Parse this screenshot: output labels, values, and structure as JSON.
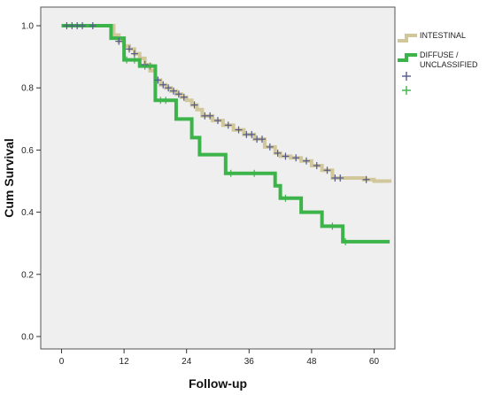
{
  "chart_data": {
    "type": "line",
    "subtype": "kaplan-meier-step",
    "title": "",
    "xlabel": "Follow-up",
    "ylabel": "Cum Survival",
    "xlim": [
      -4,
      64
    ],
    "ylim": [
      -0.04,
      1.06
    ],
    "xticks": [
      0,
      12,
      24,
      36,
      48,
      60
    ],
    "yticks": [
      0.0,
      0.2,
      0.4,
      0.6,
      0.8,
      1.0
    ],
    "grid": false,
    "legend_position": "right",
    "background": "#efefef",
    "series": [
      {
        "name": "INTESTINAL",
        "color": "#d2c79a",
        "censor_symbol": "+",
        "censor_color": "#525a8c",
        "steps": [
          [
            0,
            1.0
          ],
          [
            10,
            0.97
          ],
          [
            11,
            0.95
          ],
          [
            12,
            0.935
          ],
          [
            13,
            0.925
          ],
          [
            14,
            0.91
          ],
          [
            15,
            0.895
          ],
          [
            16,
            0.875
          ],
          [
            17,
            0.855
          ],
          [
            18,
            0.825
          ],
          [
            19,
            0.81
          ],
          [
            20,
            0.8
          ],
          [
            21,
            0.79
          ],
          [
            22,
            0.78
          ],
          [
            23,
            0.77
          ],
          [
            24,
            0.76
          ],
          [
            25,
            0.745
          ],
          [
            26,
            0.73
          ],
          [
            27,
            0.71
          ],
          [
            29,
            0.695
          ],
          [
            31,
            0.68
          ],
          [
            33,
            0.665
          ],
          [
            35,
            0.65
          ],
          [
            37,
            0.635
          ],
          [
            39,
            0.61
          ],
          [
            41,
            0.59
          ],
          [
            42,
            0.58
          ],
          [
            44,
            0.575
          ],
          [
            46,
            0.565
          ],
          [
            48,
            0.55
          ],
          [
            50,
            0.535
          ],
          [
            52,
            0.51
          ],
          [
            58,
            0.505
          ],
          [
            60,
            0.5
          ],
          [
            63,
            0.495
          ]
        ],
        "censored": [
          [
            1,
            1.0
          ],
          [
            2,
            1.0
          ],
          [
            3,
            1.0
          ],
          [
            4,
            1.0
          ],
          [
            6,
            1.0
          ],
          [
            11,
            0.95
          ],
          [
            13,
            0.925
          ],
          [
            14,
            0.91
          ],
          [
            16,
            0.875
          ],
          [
            18.5,
            0.825
          ],
          [
            19.5,
            0.81
          ],
          [
            20.5,
            0.8
          ],
          [
            21.5,
            0.79
          ],
          [
            22.5,
            0.78
          ],
          [
            23.5,
            0.77
          ],
          [
            25.5,
            0.745
          ],
          [
            27.5,
            0.71
          ],
          [
            28.5,
            0.71
          ],
          [
            30,
            0.695
          ],
          [
            32,
            0.68
          ],
          [
            34,
            0.665
          ],
          [
            35.5,
            0.65
          ],
          [
            36.5,
            0.65
          ],
          [
            37.5,
            0.635
          ],
          [
            38.5,
            0.635
          ],
          [
            40,
            0.61
          ],
          [
            41.5,
            0.59
          ],
          [
            43,
            0.58
          ],
          [
            45,
            0.575
          ],
          [
            47,
            0.565
          ],
          [
            49,
            0.55
          ],
          [
            51,
            0.535
          ],
          [
            52.5,
            0.51
          ],
          [
            53.5,
            0.51
          ],
          [
            58.5,
            0.505
          ]
        ]
      },
      {
        "name": "DIFFUSE / UNCLASSIFIED",
        "color": "#3cb44a",
        "censor_symbol": "+",
        "censor_color": "#3cb44a",
        "steps": [
          [
            0,
            1.0
          ],
          [
            9.5,
            0.96
          ],
          [
            12,
            0.89
          ],
          [
            15,
            0.87
          ],
          [
            18,
            0.76
          ],
          [
            22,
            0.7
          ],
          [
            25,
            0.64
          ],
          [
            26.5,
            0.585
          ],
          [
            31.5,
            0.525
          ],
          [
            41,
            0.485
          ],
          [
            42,
            0.445
          ],
          [
            46,
            0.4
          ],
          [
            50,
            0.355
          ],
          [
            54,
            0.305
          ],
          [
            63,
            0.305
          ]
        ],
        "censored": [
          [
            12.5,
            0.89
          ],
          [
            14,
            0.89
          ],
          [
            16,
            0.87
          ],
          [
            17,
            0.87
          ],
          [
            19,
            0.76
          ],
          [
            20,
            0.76
          ],
          [
            32.5,
            0.525
          ],
          [
            37,
            0.525
          ],
          [
            43,
            0.445
          ],
          [
            52,
            0.355
          ],
          [
            54.5,
            0.305
          ]
        ]
      }
    ]
  }
}
